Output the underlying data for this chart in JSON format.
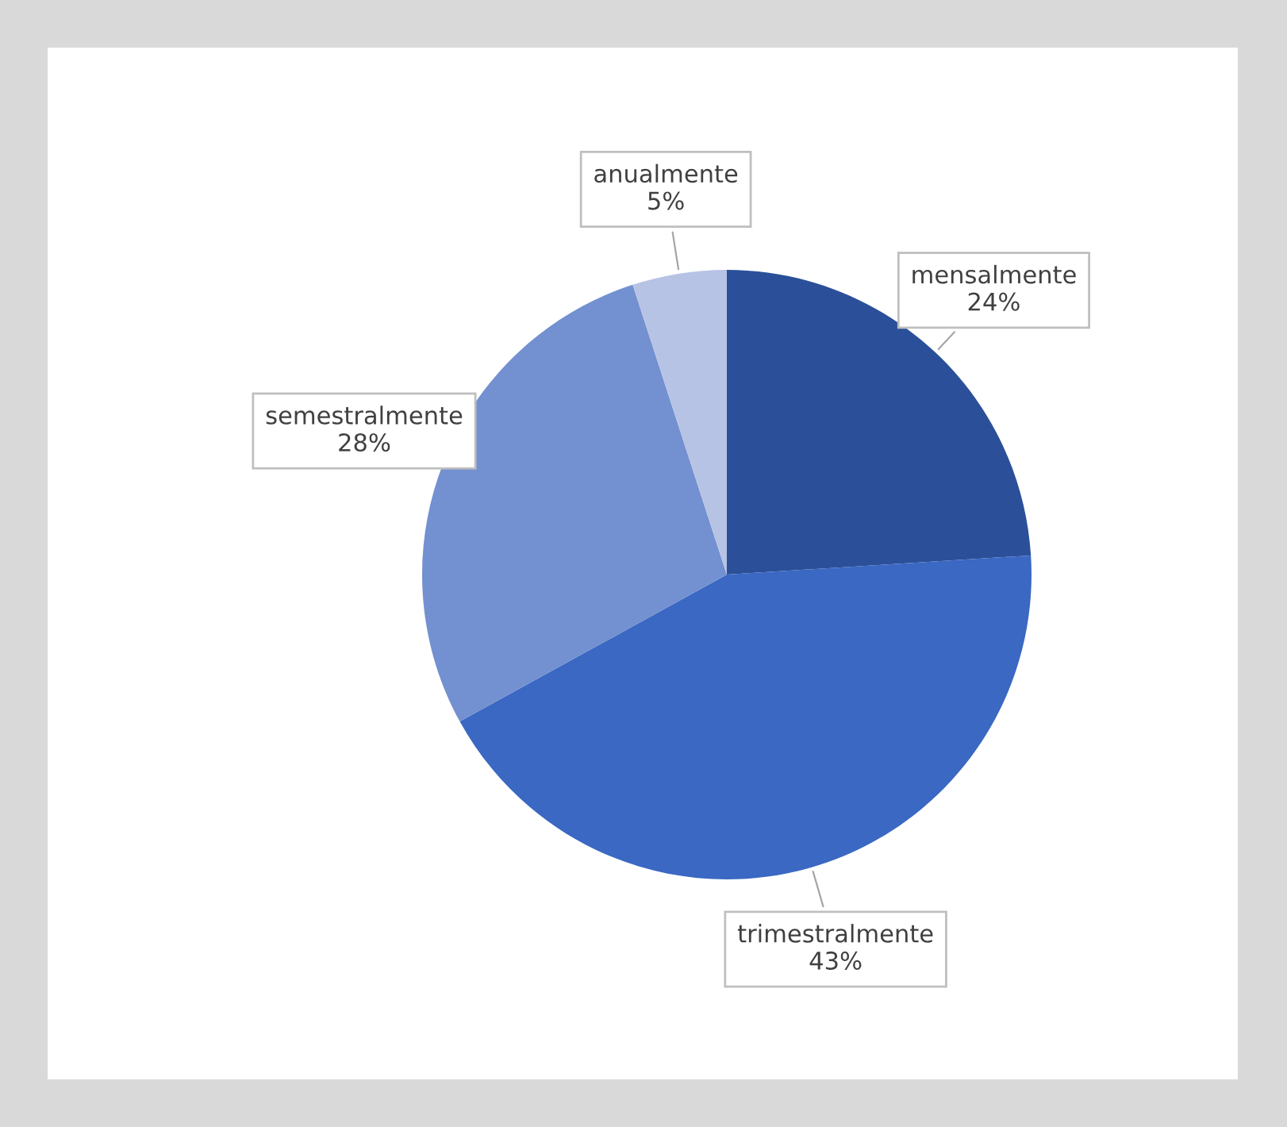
{
  "chart_data": {
    "type": "pie",
    "categories": [
      "mensalmente",
      "trimestralmente",
      "semestralmente",
      "anualmente"
    ],
    "values": [
      24,
      43,
      28,
      5
    ],
    "colors": [
      "#2b5099",
      "#3a68c2",
      "#7390d0",
      "#b7c3e4"
    ],
    "value_labels": [
      "24%",
      "43%",
      "28%",
      "5%"
    ],
    "legend": false
  }
}
